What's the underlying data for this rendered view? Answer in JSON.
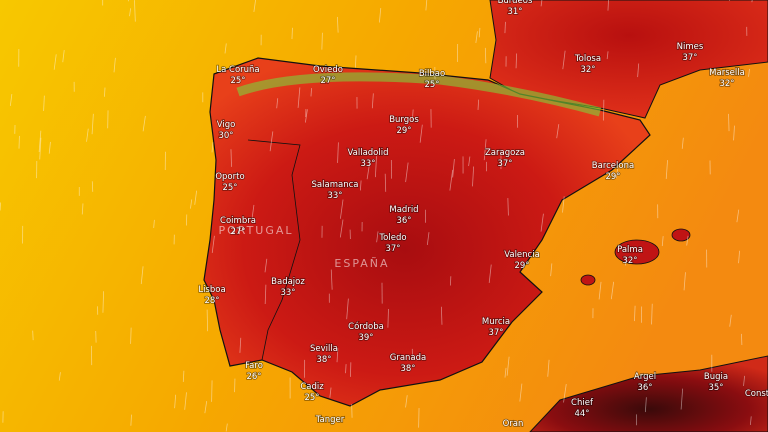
{
  "labels": [
    {
      "name": "Burdeos",
      "temp": "31°"
    },
    {
      "name": "La Coruña",
      "temp": "25°"
    },
    {
      "name": "Oviedo",
      "temp": "27°"
    },
    {
      "name": "Bilbao",
      "temp": "25°"
    },
    {
      "name": "Tolosa",
      "temp": "32°"
    },
    {
      "name": "Nimes",
      "temp": "37°"
    },
    {
      "name": "Marsella",
      "temp": "32°"
    },
    {
      "name": "Vigo",
      "temp": "30°"
    },
    {
      "name": "Burgos",
      "temp": "29°"
    },
    {
      "name": "Valladolid",
      "temp": "33°"
    },
    {
      "name": "Zaragoza",
      "temp": "37°"
    },
    {
      "name": "Barcelona",
      "temp": "29°"
    },
    {
      "name": "Oporto",
      "temp": "25°"
    },
    {
      "name": "Salamanca",
      "temp": "33°"
    },
    {
      "name": "Madrid",
      "temp": "36°"
    },
    {
      "name": "Coimbra",
      "temp": "27°"
    },
    {
      "name": "Toledo",
      "temp": "37°"
    },
    {
      "name": "Valencia",
      "temp": "29°"
    },
    {
      "name": "Palma",
      "temp": "32°"
    },
    {
      "name": "Lisboa",
      "temp": "28°"
    },
    {
      "name": "Badajoz",
      "temp": "33°"
    },
    {
      "name": "Murcia",
      "temp": "37°"
    },
    {
      "name": "Córdoba",
      "temp": "39°"
    },
    {
      "name": "Sevilla",
      "temp": "38°"
    },
    {
      "name": "Granada",
      "temp": "38°"
    },
    {
      "name": "Faro",
      "temp": "26°"
    },
    {
      "name": "Cadiz",
      "temp": "25°"
    },
    {
      "name": "Argel",
      "temp": "36°"
    },
    {
      "name": "Bugia",
      "temp": "35°"
    },
    {
      "name": "Chief",
      "temp": "44°"
    },
    {
      "name": "Oran"
    },
    {
      "name": "Tanger"
    },
    {
      "name": "Const"
    }
  ],
  "countries": [
    "PORTUGAL",
    "ESPAÑA"
  ]
}
